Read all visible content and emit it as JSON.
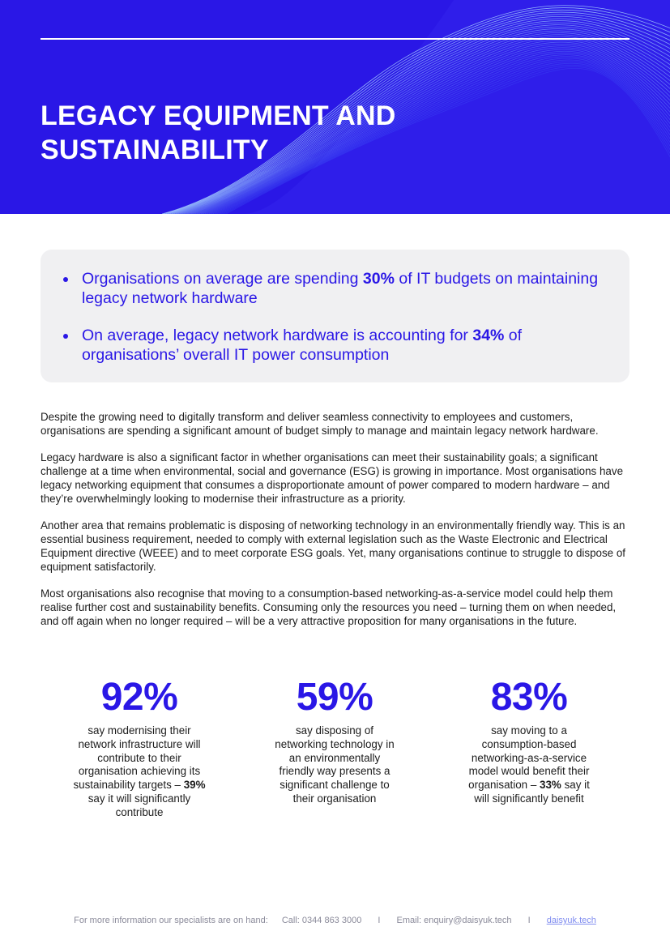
{
  "header": {
    "title_line1": "LEGACY EQUIPMENT AND",
    "title_line2": "SUSTAINABILITY"
  },
  "highlights": [
    {
      "before": "Organisations on average are spending ",
      "bold": "30%",
      "after": " of IT budgets on maintaining legacy network hardware"
    },
    {
      "before": "On average, legacy network hardware is accounting for ",
      "bold": "34%",
      "after": " of organisations’ overall IT power consumption"
    }
  ],
  "paragraphs": [
    "Despite the growing need to digitally transform and deliver seamless connectivity to employees and customers, organisations are spending a significant amount of budget simply to manage and maintain legacy network hardware.",
    "Legacy hardware is also a significant factor in whether organisations can meet their sustainability goals; a significant challenge at a time when environmental, social and governance (ESG) is growing in importance. Most organisations have legacy networking equipment that consumes a disproportionate amount of power compared to modern hardware – and they’re overwhelmingly looking to modernise their infrastructure as a priority.",
    "Another area that remains problematic is disposing of networking technology in an environmentally friendly way. This is an essential business requirement, needed to comply with external legislation such as the Waste Electronic and Electrical Equipment directive (WEEE) and to meet corporate ESG goals. Yet, many organisations continue to struggle to dispose of equipment satisfactorily.",
    "Most organisations also recognise that moving to a consumption-based networking-as-a-service model could help them realise further cost and sustainability benefits. Consuming only the resources you need – turning them on when needed, and off again when no longer required – will be a very attractive proposition for many organisations in the future."
  ],
  "stats": [
    {
      "value": "92%",
      "text": "say modernising their network infrastructure will contribute to their organisation achieving its sustainability targets –",
      "bold": "39%",
      "text_after": "say it will significantly contribute"
    },
    {
      "value": "59%",
      "text": "say disposing of networking technology in an environmentally friendly way presents a significant challenge to their organisation"
    },
    {
      "value": "83%",
      "text": "say moving to a consumption-based networking-as-a-service model would benefit their organisation –",
      "bold": "33%",
      "text_after": "say it will significantly benefit"
    }
  ],
  "footer": {
    "intro": "For more information our specialists are on hand:",
    "call": "Call: 0344 863 3000",
    "separator": "I",
    "email": "Email: enquiry@daisyuk.tech",
    "website": "daisyuk.tech"
  },
  "colors": {
    "brand_blue": "#2a17e6",
    "panel_grey": "#f0f0f2"
  }
}
